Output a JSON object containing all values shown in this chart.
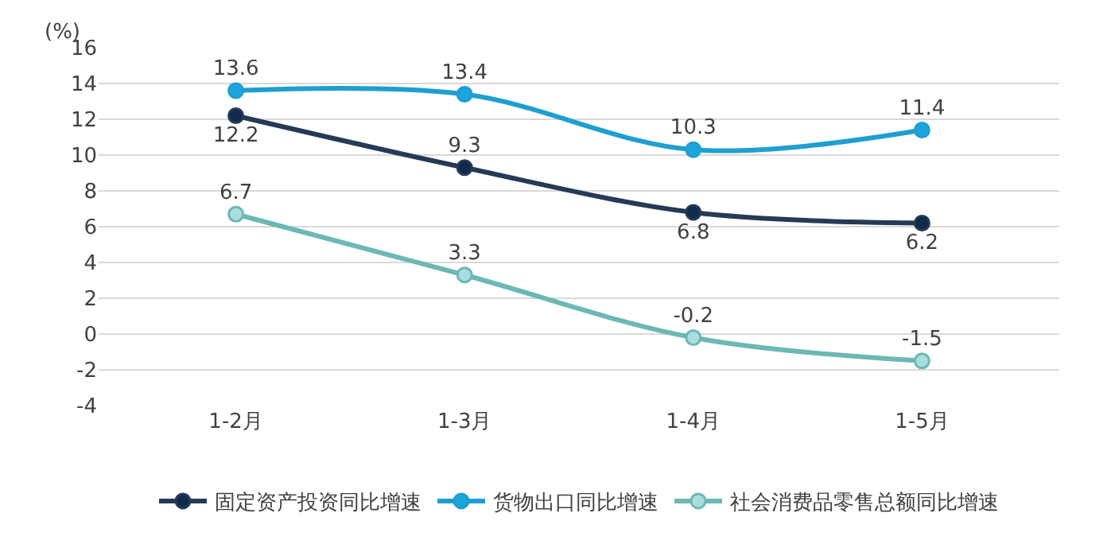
{
  "chart_data": {
    "type": "line",
    "ylabel": "(%)",
    "categories": [
      "1-2月",
      "1-3月",
      "1-4月",
      "1-5月"
    ],
    "series": [
      {
        "name": "固定资产投资同比增速",
        "color": "#253a56",
        "values": [
          12.2,
          9.3,
          6.8,
          6.2
        ]
      },
      {
        "name": "货物出口同比增速",
        "color": "#1f9fd0",
        "values": [
          13.6,
          13.4,
          10.3,
          11.4
        ]
      },
      {
        "name": "社会消费品零售总额同比增速",
        "color": "#6cb8b4",
        "values": [
          6.7,
          3.3,
          -0.2,
          -1.5
        ]
      }
    ],
    "ylim": [
      -4,
      16
    ],
    "yticks": [
      -4,
      -2,
      0,
      2,
      4,
      6,
      8,
      10,
      12,
      14,
      16
    ],
    "grid": "y",
    "legend": "bottom",
    "marker": "circle",
    "line_style": "solid",
    "data_labels": true
  }
}
